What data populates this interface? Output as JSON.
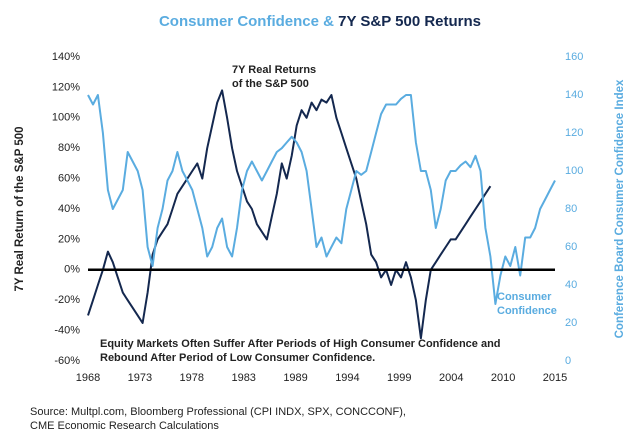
{
  "chart_data": {
    "type": "line",
    "title_parts": [
      "Consumer Confidence &",
      "7Y S&P 500 Returns"
    ],
    "y_label": "7Y Real Return of the S&P 500",
    "y2_label": "Conference Board Consumer Confidence Index",
    "annotations": [
      [
        "7Y Real Returns",
        "of the S&P 500"
      ],
      [
        "Consumer",
        "Confidence"
      ],
      [
        "Equity Markets Often Suffer After Periods of High Consumer Confidence and",
        "Rebound After Period of Low Consumer Confidence."
      ]
    ],
    "source": [
      "Source: Multpl.com, Bloomberg Professional (CPI INDX, SPX, CONCCONF),",
      "CME Economic Research Calculations"
    ],
    "x": [
      1968,
      1968.5,
      1969,
      1969.5,
      1970,
      1970.5,
      1971,
      1971.5,
      1972,
      1972.5,
      1973,
      1973.5,
      1974,
      1974.5,
      1975,
      1975.5,
      1976,
      1976.5,
      1977,
      1977.5,
      1978,
      1978.5,
      1979,
      1979.5,
      1980,
      1980.5,
      1981,
      1981.5,
      1982,
      1982.5,
      1983,
      1983.5,
      1984,
      1984.5,
      1985,
      1985.5,
      1986,
      1986.5,
      1987,
      1987.5,
      1988,
      1988.5,
      1989,
      1989.5,
      1990,
      1990.5,
      1991,
      1991.5,
      1992,
      1992.5,
      1993,
      1993.5,
      1994,
      1994.5,
      1995,
      1995.5,
      1996,
      1996.5,
      1997,
      1997.5,
      1998,
      1998.5,
      1999,
      1999.5,
      2000,
      2000.5,
      2001,
      2001.5,
      2002,
      2002.5,
      2003,
      2003.5,
      2004,
      2004.5,
      2005,
      2005.5,
      2006,
      2006.5,
      2007,
      2007.5,
      2008,
      2008.5,
      2009,
      2009.5,
      2010,
      2010.5,
      2011,
      2011.5,
      2012,
      2012.5,
      2013,
      2013.5,
      2014,
      2014.5,
      2015
    ],
    "series": [
      {
        "name": "7Y Real Returns of the S&P 500",
        "color": "#14284f",
        "values": [
          -30,
          -20,
          -10,
          0,
          12,
          5,
          -5,
          -15,
          -20,
          -25,
          -30,
          -35,
          -15,
          10,
          20,
          25,
          30,
          40,
          50,
          55,
          60,
          65,
          70,
          60,
          80,
          95,
          110,
          118,
          100,
          80,
          65,
          55,
          45,
          40,
          30,
          25,
          20,
          35,
          50,
          70,
          60,
          75,
          95,
          105,
          100,
          110,
          105,
          112,
          110,
          115,
          100,
          90,
          80,
          70,
          60,
          45,
          30,
          10,
          5,
          -5,
          0,
          -10,
          0,
          -5,
          5,
          -5,
          -20,
          -45,
          -20,
          0,
          5,
          10,
          15,
          20,
          20,
          25,
          30,
          35,
          40,
          45,
          50,
          55,
          null,
          null,
          null,
          null,
          null,
          null,
          null,
          null,
          null,
          null,
          null,
          null,
          null
        ]
      },
      {
        "name": "Consumer Confidence",
        "color": "#5aace0",
        "axis": "y2",
        "values": [
          140,
          135,
          140,
          120,
          90,
          80,
          85,
          90,
          110,
          105,
          100,
          90,
          60,
          50,
          70,
          80,
          95,
          100,
          110,
          100,
          95,
          90,
          80,
          70,
          55,
          60,
          70,
          75,
          60,
          55,
          70,
          90,
          100,
          105,
          100,
          95,
          100,
          105,
          110,
          112,
          115,
          118,
          115,
          110,
          100,
          80,
          60,
          65,
          55,
          60,
          65,
          62,
          80,
          90,
          100,
          98,
          100,
          110,
          120,
          130,
          135,
          135,
          135,
          138,
          140,
          140,
          115,
          100,
          100,
          90,
          70,
          80,
          95,
          100,
          100,
          103,
          105,
          102,
          108,
          100,
          70,
          55,
          30,
          45,
          55,
          50,
          60,
          45,
          65,
          65,
          70,
          80,
          85,
          90,
          95
        ]
      }
    ],
    "xlim": [
      1968,
      2015
    ],
    "xticks": [
      1968,
      {
        "value": 1973.22,
        "label": "1973"
      },
      {
        "value": 1978.44,
        "label": "1978"
      },
      {
        "value": 1983.67,
        "label": "1983"
      },
      {
        "value": 1988.89,
        "label": "1989"
      },
      {
        "value": 1994.11,
        "label": "1994"
      },
      {
        "value": 1999.33,
        "label": "1999"
      },
      {
        "value": 2004.56,
        "label": "2004"
      },
      {
        "value": 2009.78,
        "label": "2010"
      },
      2015
    ],
    "ylim": [
      -60,
      140
    ],
    "yticks": [
      {
        "value": -60,
        "label": "-60%"
      },
      {
        "value": -40,
        "label": "-40%"
      },
      {
        "value": -20,
        "label": "-20%"
      },
      {
        "value": 0,
        "label": "0%"
      },
      {
        "value": 20,
        "label": "20%"
      },
      {
        "value": 40,
        "label": "40%"
      },
      {
        "value": 60,
        "label": "60%"
      },
      {
        "value": 80,
        "label": "80%"
      },
      {
        "value": 100,
        "label": "100%"
      },
      {
        "value": 120,
        "label": "120%"
      },
      {
        "value": 140,
        "label": "140%"
      }
    ],
    "y2lim": [
      0,
      160
    ],
    "y2ticks": [
      0,
      20,
      40,
      60,
      80,
      100,
      120,
      140,
      160
    ],
    "zero_line": true
  }
}
